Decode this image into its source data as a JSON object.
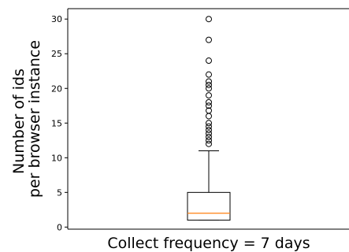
{
  "chart_data": {
    "type": "boxplot",
    "xlabel": "Collect frequency = 7 days",
    "ylabel_lines": [
      "Number of ids",
      "per browser instance"
    ],
    "y_ticks": [
      0,
      5,
      10,
      15,
      20,
      25,
      30
    ],
    "ylim": [
      -0.3,
      31.5
    ],
    "box": {
      "whisker_low": 1,
      "q1": 1,
      "median": 2,
      "q3": 5,
      "whisker_high": 11
    },
    "outliers": [
      12,
      12.5,
      13,
      13.5,
      14,
      14.5,
      15,
      16,
      16.8,
      17.5,
      18,
      19,
      20,
      20.5,
      21,
      22,
      24,
      27,
      30
    ],
    "colors": {
      "median": "#ff7f0e",
      "box": "#000000"
    }
  }
}
